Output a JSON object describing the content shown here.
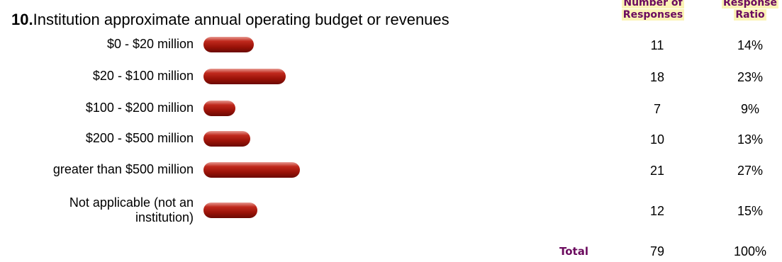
{
  "question": {
    "number": "10.",
    "text": "Institution approximate annual operating budget or revenues"
  },
  "headers": {
    "count": [
      "Number of",
      "Responses"
    ],
    "ratio": [
      "Response",
      "Ratio"
    ]
  },
  "total": {
    "label": "Total",
    "count": "79",
    "ratio": "100%"
  },
  "colors": {
    "bar": "#9a1208",
    "header_text": "#6b0a5e",
    "header_bg": "#fbf3b6"
  },
  "chart_data": {
    "type": "bar",
    "orientation": "horizontal",
    "categories": [
      "$0 - $20 million",
      "$20 - $100 million",
      "$100 - $200 million",
      "$200 - $500 million",
      "greater than $500 million",
      "Not applicable (not an institution)"
    ],
    "series": [
      {
        "values": [
          11,
          18,
          7,
          10,
          21,
          12
        ]
      }
    ],
    "counts": [
      "11",
      "18",
      "7",
      "10",
      "21",
      "12"
    ],
    "ratios": [
      "14%",
      "23%",
      "9%",
      "13%",
      "27%",
      "15%"
    ],
    "ratio_values": [
      14,
      23,
      9,
      13,
      27,
      15
    ]
  }
}
